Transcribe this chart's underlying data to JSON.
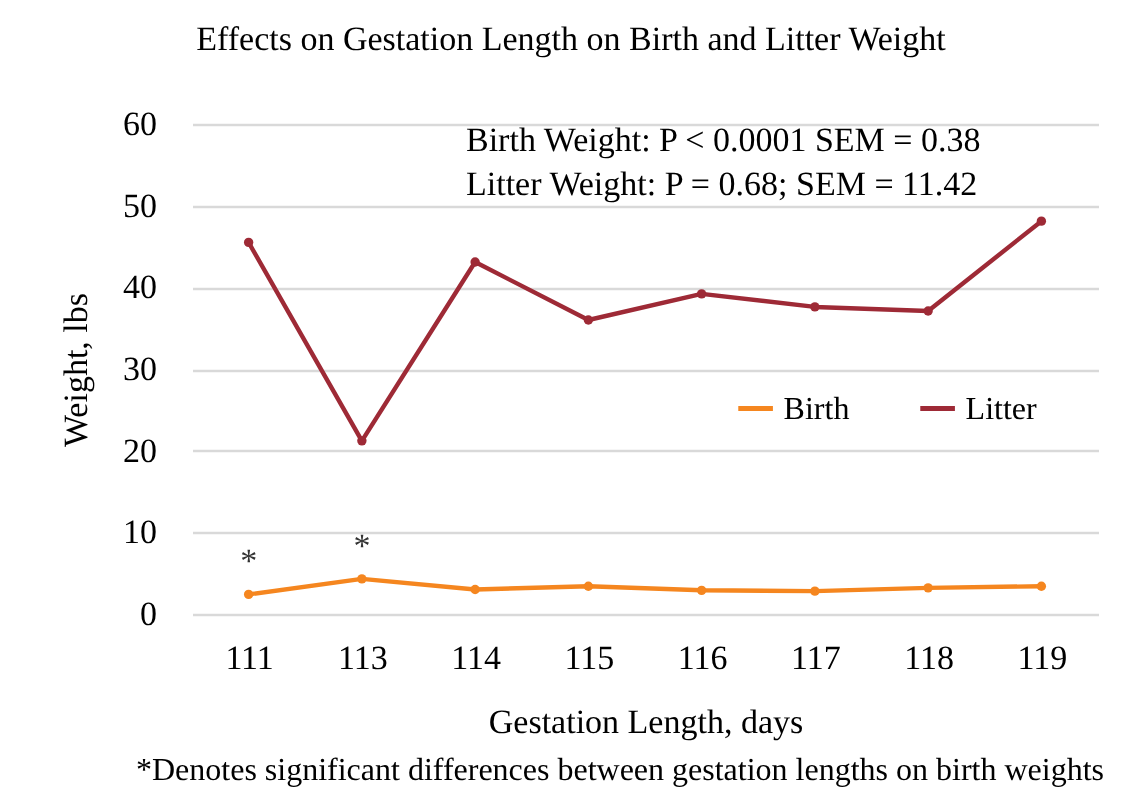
{
  "chart_data": {
    "type": "line",
    "title": "Effects on Gestation Length on Birth and Litter Weight",
    "xlabel": "Gestation Length, days",
    "ylabel": "Weight, lbs",
    "categories": [
      "111",
      "113",
      "114",
      "115",
      "116",
      "117",
      "118",
      "119"
    ],
    "series": [
      {
        "name": "Birth",
        "color": "#f5861f",
        "values": [
          2.4,
          4.3,
          3.0,
          3.4,
          2.9,
          2.8,
          3.2,
          3.4
        ]
      },
      {
        "name": "Litter",
        "color": "#9e2a36",
        "values": [
          45.5,
          21.2,
          43.1,
          36,
          39.2,
          37.6,
          37.1,
          48.1
        ]
      }
    ],
    "ylim": [
      0,
      60
    ],
    "yticks": [
      0,
      10,
      20,
      30,
      40,
      50,
      60
    ],
    "grid": "y",
    "legend": "right",
    "marker": "circle",
    "annotations": [
      "Birth Weight: P < 0.0001 SEM = 0.38",
      "Litter Weight: P = 0.68; SEM = 11.42",
      {
        "text": "*",
        "x": "111",
        "y": 2.4
      },
      {
        "text": "*",
        "x": "113",
        "y": 4.3
      },
      "*Denotes significant differences between gestation lengths on birth weights"
    ]
  }
}
